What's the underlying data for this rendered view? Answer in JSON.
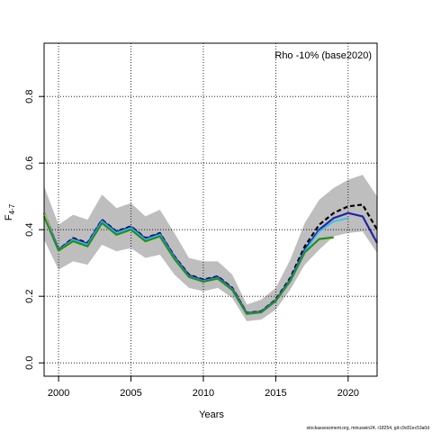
{
  "chart_data": {
    "type": "line",
    "annotation": "Rho -10% (base2020)",
    "xlabel": "Years",
    "ylabel_main": "F",
    "ylabel_sub": "4-7",
    "footer": "stockassessment.org, minuswin24, r18254, git:c9c81ec53a0d",
    "xlim": [
      1999,
      2022
    ],
    "ylim": [
      -0.04,
      0.96
    ],
    "xticks": [
      2000,
      2005,
      2010,
      2015,
      2020
    ],
    "yticks": [
      0.0,
      0.2,
      0.4,
      0.6,
      0.8
    ],
    "xtick_labels": [
      "2000",
      "2005",
      "2010",
      "2015",
      "2020"
    ],
    "ytick_labels": [
      "0.0",
      "0.2",
      "0.4",
      "0.6",
      "0.8"
    ],
    "grid": true,
    "band": {
      "color": "#bebebe",
      "x": [
        1999,
        2000,
        2001,
        2002,
        2003,
        2004,
        2005,
        2006,
        2007,
        2008,
        2009,
        2010,
        2011,
        2012,
        2013,
        2014,
        2015,
        2016,
        2017,
        2018,
        2019,
        2020,
        2021,
        2022
      ],
      "upper": [
        0.53,
        0.415,
        0.445,
        0.43,
        0.505,
        0.465,
        0.48,
        0.44,
        0.46,
        0.39,
        0.315,
        0.305,
        0.305,
        0.265,
        0.175,
        0.19,
        0.225,
        0.31,
        0.42,
        0.49,
        0.525,
        0.55,
        0.565,
        0.5
      ],
      "lower": [
        0.37,
        0.28,
        0.305,
        0.295,
        0.355,
        0.335,
        0.345,
        0.315,
        0.325,
        0.265,
        0.225,
        0.215,
        0.225,
        0.195,
        0.125,
        0.13,
        0.16,
        0.22,
        0.295,
        0.34,
        0.38,
        0.39,
        0.395,
        0.33
      ]
    },
    "series": [
      {
        "color": "#000000",
        "width": 2.2,
        "dash": "5,3",
        "x": [
          1999,
          2000,
          2001,
          2002,
          2003,
          2004,
          2005,
          2006,
          2007,
          2008,
          2009,
          2010,
          2011,
          2012,
          2013,
          2014,
          2015,
          2016,
          2017,
          2018,
          2019,
          2020,
          2021,
          2022
        ],
        "y": [
          0.45,
          0.34,
          0.375,
          0.36,
          0.43,
          0.395,
          0.41,
          0.375,
          0.39,
          0.32,
          0.265,
          0.25,
          0.26,
          0.225,
          0.15,
          0.155,
          0.19,
          0.255,
          0.35,
          0.415,
          0.45,
          0.47,
          0.475,
          0.4
        ]
      },
      {
        "color": "#2222aa",
        "width": 2.2,
        "dash": "",
        "x": [
          1999,
          2000,
          2001,
          2002,
          2003,
          2004,
          2005,
          2006,
          2007,
          2008,
          2009,
          2010,
          2011,
          2012,
          2013,
          2014,
          2015,
          2016,
          2017,
          2018,
          2019,
          2020,
          2021,
          2022
        ],
        "y": [
          0.45,
          0.34,
          0.372,
          0.358,
          0.428,
          0.393,
          0.408,
          0.373,
          0.388,
          0.318,
          0.263,
          0.248,
          0.258,
          0.223,
          0.149,
          0.154,
          0.188,
          0.25,
          0.34,
          0.4,
          0.435,
          0.45,
          0.44,
          0.36
        ]
      },
      {
        "color": "#2ec4e8",
        "width": 1.8,
        "dash": "",
        "x": [
          1999,
          2000,
          2001,
          2002,
          2003,
          2004,
          2005,
          2006,
          2007,
          2008,
          2009,
          2010,
          2011,
          2012,
          2013,
          2014,
          2015,
          2016,
          2017,
          2018,
          2019,
          2020
        ],
        "y": [
          0.45,
          0.338,
          0.37,
          0.355,
          0.425,
          0.39,
          0.405,
          0.37,
          0.385,
          0.315,
          0.26,
          0.246,
          0.255,
          0.221,
          0.148,
          0.153,
          0.187,
          0.248,
          0.335,
          0.395,
          0.425,
          0.435
        ]
      },
      {
        "color": "#d9d92a",
        "width": 1.8,
        "dash": "",
        "x": [
          1999,
          2000,
          2001,
          2002,
          2003,
          2004,
          2005,
          2006,
          2007,
          2008,
          2009,
          2010,
          2011,
          2012,
          2013,
          2014,
          2015,
          2016,
          2017,
          2018,
          2019
        ],
        "y": [
          0.45,
          0.335,
          0.362,
          0.348,
          0.418,
          0.383,
          0.398,
          0.363,
          0.378,
          0.31,
          0.257,
          0.243,
          0.251,
          0.218,
          0.146,
          0.151,
          0.185,
          0.245,
          0.33,
          0.37,
          0.375
        ]
      },
      {
        "color": "#1f8a3c",
        "width": 2.2,
        "dash": "",
        "x": [
          1999,
          2000,
          2001,
          2002,
          2003,
          2004,
          2005,
          2006,
          2007,
          2008,
          2009,
          2010,
          2011,
          2012,
          2013,
          2014,
          2015,
          2016,
          2017,
          2018,
          2019
        ],
        "y": [
          0.44,
          0.337,
          0.365,
          0.35,
          0.42,
          0.385,
          0.4,
          0.365,
          0.38,
          0.312,
          0.258,
          0.244,
          0.253,
          0.219,
          0.147,
          0.152,
          0.186,
          0.246,
          0.332,
          0.372,
          0.377
        ]
      }
    ]
  }
}
